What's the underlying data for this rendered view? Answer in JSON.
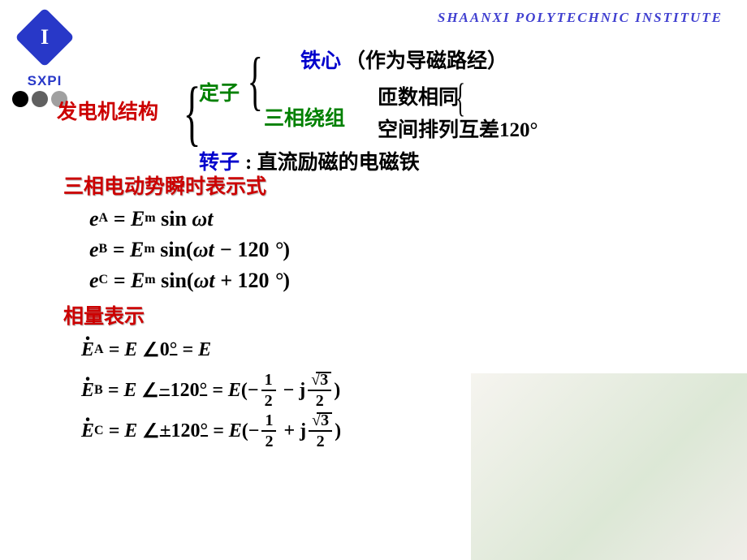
{
  "header": {
    "institute": "SHAANXI  POLYTECHNIC  INSTITUTE",
    "logo_letter": "I",
    "logo_text": "SXPI",
    "logo_color": "#2838c8"
  },
  "dots": {
    "colors": [
      "#000000",
      "#606060",
      "#a0a0a0"
    ]
  },
  "tree": {
    "root": "发电机结构",
    "stator": "定子",
    "rotor": "转子",
    "rotor_desc": ": 直流励磁的电磁铁",
    "iron_core": "铁心",
    "iron_desc": "（作为导磁路经）",
    "winding": "三相绕组",
    "winding_detail1": "匝数相同",
    "winding_detail2": "空间排列互差120°"
  },
  "subtitle1": "三相电动势瞬时表示式",
  "subtitle2": "相量表示",
  "instant_equations": {
    "eA": "eA = Em sin ωt",
    "eB": "eB = Em sin(ωt − 120°)",
    "eC": "eC = Em sin(ωt + 120°)"
  },
  "phasor_equations": {
    "angles": {
      "A": "0°",
      "B": "−120°",
      "C": "+120°"
    },
    "fraction": {
      "num1": "1",
      "den": "2",
      "num2": "√3"
    }
  },
  "colors": {
    "red": "#cc0000",
    "green": "#008000",
    "blue": "#0000cc",
    "black": "#000000",
    "header_blue": "#4040d0"
  }
}
